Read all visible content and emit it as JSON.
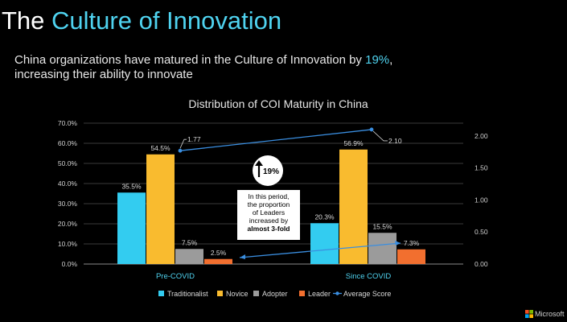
{
  "slide": {
    "title_part1": "The",
    "title_part2": "Culture of Innovation",
    "subtitle_line1_a": "China organizations have matured in the Culture of Innovation by",
    "subtitle_highlight": "19%",
    "subtitle_line1_b": ",",
    "subtitle_line2": "increasing their ability to innovate",
    "brand": "Microsoft"
  },
  "colors": {
    "title_accent": "#4fd3f0",
    "traditionalist": "#33ccf0",
    "novice": "#f9bb2f",
    "adopter": "#9b9b9b",
    "leader": "#f26f2f",
    "average_score": "#3a8ee0"
  },
  "chart_data": {
    "type": "bar",
    "title": "Distribution of COI Maturity in China",
    "categories": [
      "Pre-COVID",
      "Since COVID"
    ],
    "series": [
      {
        "name": "Traditionalist",
        "values": [
          35.5,
          20.3
        ],
        "labels": [
          "35.5%",
          "20.3%"
        ]
      },
      {
        "name": "Novice",
        "values": [
          54.5,
          56.9
        ],
        "labels": [
          "54.5%",
          "56.9%"
        ]
      },
      {
        "name": "Adopter",
        "values": [
          7.5,
          15.5
        ],
        "labels": [
          "7.5%",
          "15.5%"
        ]
      },
      {
        "name": "Leader",
        "values": [
          2.5,
          7.3
        ],
        "labels": [
          "2.5%",
          "7.3%"
        ]
      }
    ],
    "line_series": {
      "name": "Average Score",
      "values": [
        1.77,
        2.1
      ],
      "labels": [
        "1.77",
        "2.10"
      ],
      "axis": "right"
    },
    "ylim": [
      0,
      70
    ],
    "yticks": [
      "0.0%",
      "10.0%",
      "20.0%",
      "30.0%",
      "40.0%",
      "50.0%",
      "60.0%",
      "70.0%"
    ],
    "y2lim": [
      0,
      2.2
    ],
    "y2ticks": [
      "0.00",
      "0.50",
      "1.00",
      "1.50",
      "2.00"
    ],
    "grid": true,
    "legend_position": "bottom",
    "annotations": {
      "badge": "19%",
      "callout_lines": [
        "In this period,",
        "the proportion",
        "of Leaders",
        "increased by"
      ],
      "callout_bold": "almost 3-fold"
    }
  }
}
